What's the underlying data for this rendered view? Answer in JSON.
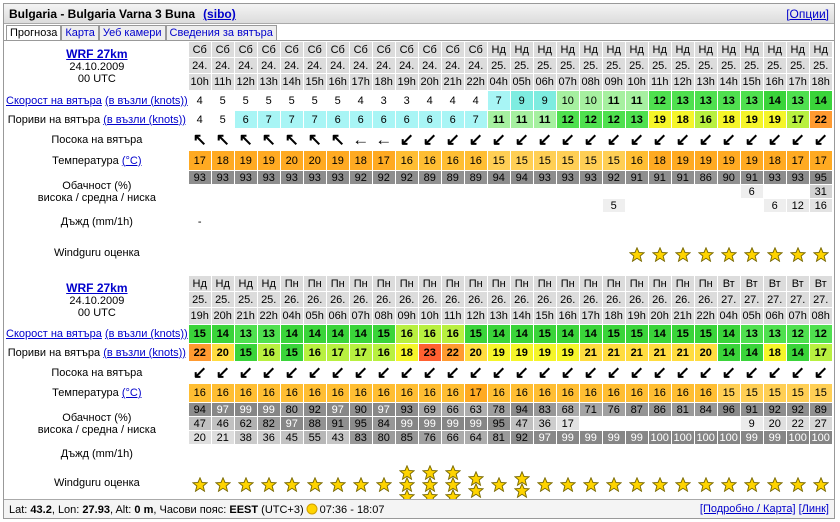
{
  "header": {
    "title": "Bulgaria - Bulgaria Varna 3 Buna",
    "user": "(sibo)",
    "options": "[Опции]"
  },
  "tabs": [
    "Прогноза",
    "Карта",
    "Уеб камери",
    "Сведения за вятъра"
  ],
  "labels": {
    "speed": "Скорост на вятъра",
    "speed_unit": "(в възли (knots))",
    "gusts": "Пориви на вятъра",
    "gusts_unit": "(в възли (knots))",
    "direction": "Посока на вятъра",
    "temperature": "Температура",
    "temperature_unit": "(°C)",
    "cloud": "Обачност (%)",
    "cloud_levels": "висока / средна / ниска",
    "rain": "Дъжд (mm/1h)",
    "rating": "Windguru оценка"
  },
  "forecasts": [
    {
      "model": "WRF 27km",
      "date": "24.10.2009",
      "run": "00 UTC",
      "days": [
        "Сб",
        "Сб",
        "Сб",
        "Сб",
        "Сб",
        "Сб",
        "Сб",
        "Сб",
        "Сб",
        "Сб",
        "Сб",
        "Сб",
        "Сб",
        "Нд",
        "Нд",
        "Нд",
        "Нд",
        "Нд",
        "Нд",
        "Нд",
        "Нд",
        "Нд",
        "Нд",
        "Нд",
        "Нд",
        "Нд",
        "Нд",
        "Нд"
      ],
      "dates": [
        "24.",
        "24.",
        "24.",
        "24.",
        "24.",
        "24.",
        "24.",
        "24.",
        "24.",
        "24.",
        "24.",
        "24.",
        "24.",
        "25.",
        "25.",
        "25.",
        "25.",
        "25.",
        "25.",
        "25.",
        "25.",
        "25.",
        "25.",
        "25.",
        "25.",
        "25.",
        "25.",
        "25."
      ],
      "hours": [
        "10h",
        "11h",
        "12h",
        "13h",
        "14h",
        "15h",
        "16h",
        "17h",
        "18h",
        "19h",
        "20h",
        "21h",
        "22h",
        "04h",
        "05h",
        "06h",
        "07h",
        "08h",
        "09h",
        "10h",
        "11h",
        "12h",
        "13h",
        "14h",
        "15h",
        "16h",
        "17h",
        "18h"
      ],
      "speed": [
        4,
        5,
        5,
        5,
        5,
        5,
        5,
        4,
        3,
        3,
        4,
        4,
        4,
        7,
        9,
        9,
        10,
        10,
        11,
        11,
        12,
        13,
        13,
        13,
        13,
        14,
        13,
        14
      ],
      "gusts": [
        4,
        5,
        6,
        7,
        7,
        7,
        6,
        6,
        6,
        6,
        6,
        6,
        7,
        11,
        11,
        11,
        12,
        12,
        12,
        13,
        19,
        18,
        16,
        18,
        19,
        19,
        17,
        22
      ],
      "direction": [
        "↖",
        "↖",
        "↖",
        "↖",
        "↖",
        "↖",
        "↖",
        "←",
        "←",
        "↙",
        "↙",
        "↙",
        "↙",
        "↙",
        "↙",
        "↙",
        "↙",
        "↙",
        "↙",
        "↙",
        "↙",
        "↙",
        "↙",
        "↙",
        "↙",
        "↙",
        "↙",
        "↙"
      ],
      "temperature": [
        17,
        18,
        19,
        19,
        20,
        20,
        19,
        18,
        17,
        16,
        16,
        16,
        16,
        15,
        15,
        15,
        15,
        15,
        15,
        16,
        18,
        19,
        19,
        19,
        19,
        18,
        17,
        17
      ],
      "cloud_high": [
        93,
        93,
        93,
        93,
        93,
        93,
        93,
        92,
        92,
        92,
        89,
        89,
        89,
        94,
        94,
        93,
        93,
        93,
        92,
        91,
        91,
        91,
        86,
        90,
        91,
        93,
        93,
        95
      ],
      "cloud_mid": [
        null,
        null,
        null,
        null,
        null,
        null,
        null,
        null,
        null,
        null,
        null,
        null,
        null,
        null,
        null,
        null,
        null,
        null,
        null,
        null,
        null,
        null,
        null,
        null,
        6,
        null,
        null,
        31
      ],
      "cloud_low": [
        null,
        null,
        null,
        null,
        null,
        null,
        null,
        null,
        null,
        null,
        null,
        null,
        null,
        null,
        null,
        null,
        null,
        null,
        5,
        null,
        null,
        null,
        null,
        null,
        null,
        6,
        12,
        16
      ],
      "rain": [
        "-",
        null,
        null,
        null,
        null,
        null,
        null,
        null,
        null,
        null,
        null,
        null,
        null,
        null,
        null,
        null,
        null,
        null,
        null,
        null,
        null,
        null,
        null,
        null,
        null,
        null,
        null,
        null
      ],
      "rating": [
        0,
        0,
        0,
        0,
        0,
        0,
        0,
        0,
        0,
        0,
        0,
        0,
        0,
        0,
        0,
        0,
        0,
        0,
        0,
        1,
        1,
        1,
        1,
        1,
        1,
        1,
        1,
        1
      ]
    },
    {
      "model": "WRF 27km",
      "date": "24.10.2009",
      "run": "00 UTC",
      "days": [
        "Нд",
        "Нд",
        "Нд",
        "Нд",
        "Пн",
        "Пн",
        "Пн",
        "Пн",
        "Пн",
        "Пн",
        "Пн",
        "Пн",
        "Пн",
        "Пн",
        "Пн",
        "Пн",
        "Пн",
        "Пн",
        "Пн",
        "Пн",
        "Пн",
        "Пн",
        "Пн",
        "Вт",
        "Вт",
        "Вт",
        "Вт",
        "Вт"
      ],
      "dates": [
        "25.",
        "25.",
        "25.",
        "25.",
        "26.",
        "26.",
        "26.",
        "26.",
        "26.",
        "26.",
        "26.",
        "26.",
        "26.",
        "26.",
        "26.",
        "26.",
        "26.",
        "26.",
        "26.",
        "26.",
        "26.",
        "26.",
        "26.",
        "27.",
        "27.",
        "27.",
        "27.",
        "27."
      ],
      "hours": [
        "19h",
        "20h",
        "21h",
        "22h",
        "04h",
        "05h",
        "06h",
        "07h",
        "08h",
        "09h",
        "10h",
        "11h",
        "12h",
        "13h",
        "14h",
        "15h",
        "16h",
        "17h",
        "18h",
        "19h",
        "20h",
        "21h",
        "22h",
        "04h",
        "05h",
        "06h",
        "07h",
        "08h"
      ],
      "speed": [
        15,
        14,
        13,
        13,
        14,
        14,
        14,
        14,
        15,
        16,
        16,
        16,
        15,
        14,
        14,
        15,
        14,
        14,
        15,
        15,
        14,
        15,
        15,
        14,
        13,
        13,
        12,
        12
      ],
      "gusts": [
        22,
        20,
        15,
        16,
        15,
        16,
        17,
        17,
        16,
        18,
        23,
        22,
        20,
        19,
        19,
        19,
        19,
        21,
        21,
        21,
        21,
        21,
        20,
        14,
        14,
        18,
        14,
        17
      ],
      "direction": [
        "↙",
        "↙",
        "↙",
        "↙",
        "↙",
        "↙",
        "↙",
        "↙",
        "↙",
        "↙",
        "↙",
        "↙",
        "↙",
        "↙",
        "↙",
        "↙",
        "↙",
        "↙",
        "↙",
        "↙",
        "↙",
        "↙",
        "↙",
        "↙",
        "↙",
        "↙",
        "↙",
        "↙"
      ],
      "temperature": [
        16,
        16,
        16,
        16,
        16,
        16,
        16,
        16,
        16,
        16,
        16,
        16,
        17,
        16,
        16,
        16,
        16,
        16,
        16,
        16,
        16,
        16,
        16,
        15,
        15,
        15,
        15,
        15
      ],
      "cloud_high": [
        94,
        97,
        99,
        99,
        80,
        92,
        97,
        90,
        97,
        93,
        69,
        66,
        63,
        78,
        94,
        83,
        68,
        71,
        76,
        87,
        86,
        81,
        84,
        96,
        91,
        92,
        92,
        89
      ],
      "cloud_mid": [
        47,
        46,
        62,
        82,
        97,
        88,
        91,
        95,
        84,
        99,
        99,
        99,
        99,
        95,
        47,
        36,
        17,
        null,
        null,
        null,
        null,
        null,
        null,
        null,
        9,
        20,
        22,
        27
      ],
      "cloud_low": [
        20,
        21,
        38,
        36,
        45,
        55,
        43,
        83,
        80,
        85,
        76,
        66,
        64,
        81,
        92,
        97,
        99,
        99,
        99,
        99,
        100,
        100,
        100,
        100,
        99,
        99,
        100,
        100
      ],
      "rain": [
        null,
        null,
        null,
        null,
        null,
        null,
        null,
        null,
        null,
        null,
        null,
        null,
        null,
        null,
        null,
        null,
        null,
        null,
        null,
        null,
        null,
        null,
        null,
        null,
        null,
        null,
        null,
        null
      ],
      "rating": [
        1,
        1,
        1,
        1,
        1,
        1,
        1,
        1,
        1,
        3,
        3,
        3,
        2,
        1,
        2,
        1,
        1,
        1,
        1,
        1,
        1,
        1,
        1,
        1,
        1,
        1,
        1,
        1
      ]
    }
  ],
  "footer": {
    "parts": [
      {
        "text": "Lat: "
      },
      {
        "text": "43.2",
        "bold": true
      },
      {
        "text": ", Lon: "
      },
      {
        "text": "27.93",
        "bold": true
      },
      {
        "text": ", Alt: "
      },
      {
        "text": "0 m",
        "bold": true
      },
      {
        "text": ", Часови пояс: "
      },
      {
        "text": "EEST",
        "bold": true
      },
      {
        "text": " (UTC+3)"
      }
    ],
    "sun": "07:36 - 18:07",
    "details": "[Подробно / Карта]",
    "link": "[Линк]"
  }
}
